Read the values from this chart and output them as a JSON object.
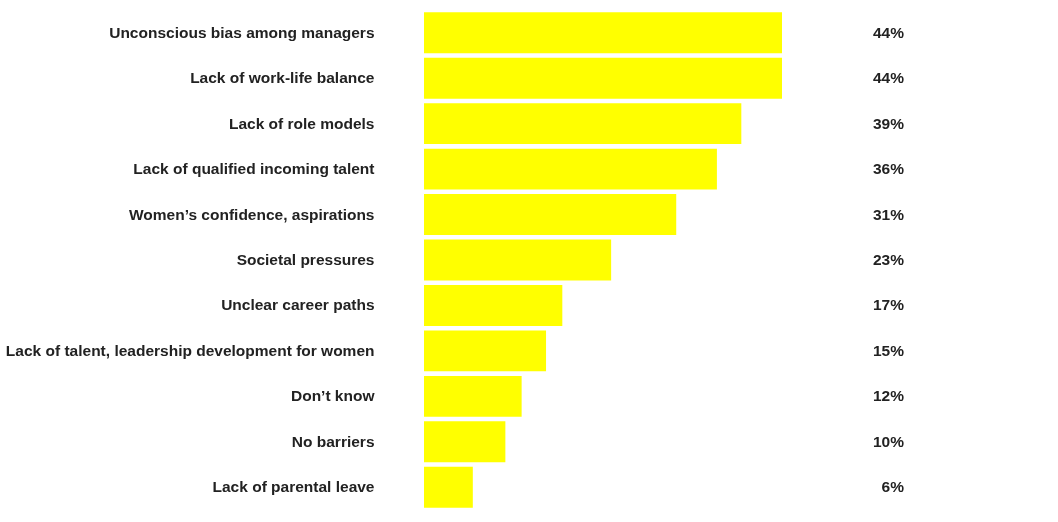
{
  "chart_data": {
    "type": "bar",
    "orientation": "horizontal",
    "categories": [
      "Unconscious bias among managers",
      "Lack of work-life balance",
      "Lack of role models",
      "Lack of qualified incoming talent",
      "Women’s confidence, aspirations",
      "Societal pressures",
      "Unclear career paths",
      "Lack of talent, leadership development for women",
      "Don’t know",
      "No barriers",
      "Lack of parental leave"
    ],
    "values": [
      44,
      44,
      39,
      36,
      31,
      23,
      17,
      15,
      12,
      10,
      6
    ],
    "value_labels": [
      "44%",
      "44%",
      "39%",
      "36%",
      "31%",
      "23%",
      "17%",
      "15%",
      "12%",
      "10%",
      "6%"
    ],
    "color": "#ffff00",
    "grid": false
  }
}
